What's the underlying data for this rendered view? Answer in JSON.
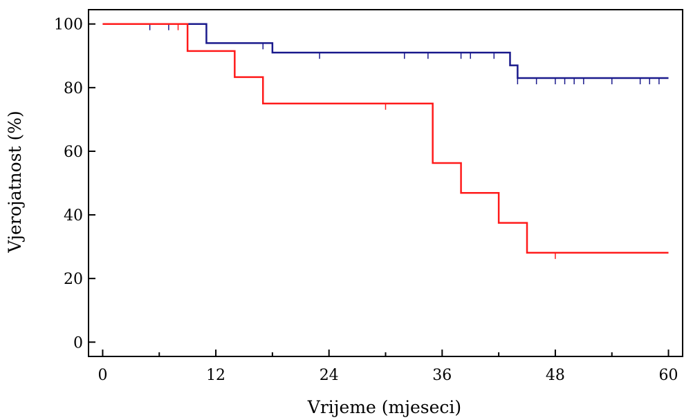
{
  "chart_data": {
    "type": "line",
    "step": true,
    "xlabel": "Vrijeme (mjeseci)",
    "ylabel": "Vjerojatnost (%)",
    "xlim": [
      -1.5,
      61.5
    ],
    "ylim": [
      -4.5,
      104.5
    ],
    "xticks": [
      0,
      12,
      24,
      36,
      48,
      60
    ],
    "xtick_labels": [
      "0",
      "12",
      "24",
      "36",
      "48",
      "60"
    ],
    "xminor": [
      6,
      18,
      30,
      42,
      54
    ],
    "yticks": [
      0,
      20,
      40,
      60,
      80,
      100
    ],
    "ytick_labels": [
      "0",
      "20",
      "40",
      "60",
      "80",
      "100"
    ],
    "grid": false,
    "series": [
      {
        "color": "#1a1a8c",
        "steps": [
          [
            0,
            100
          ],
          [
            11,
            94
          ],
          [
            18,
            91
          ],
          [
            43.2,
            87
          ],
          [
            44,
            83
          ],
          [
            60,
            83
          ]
        ],
        "censored": [
          [
            5,
            100
          ],
          [
            7,
            100
          ],
          [
            17,
            94
          ],
          [
            23,
            91
          ],
          [
            32,
            91
          ],
          [
            34.5,
            91
          ],
          [
            38,
            91
          ],
          [
            39,
            91
          ],
          [
            41.5,
            91
          ],
          [
            44,
            83
          ],
          [
            46,
            83
          ],
          [
            48,
            83
          ],
          [
            49,
            83
          ],
          [
            50,
            83
          ],
          [
            51,
            83
          ],
          [
            54,
            83
          ],
          [
            57,
            83
          ],
          [
            58,
            83
          ],
          [
            59,
            83
          ]
        ]
      },
      {
        "color": "#ff1a1a",
        "steps": [
          [
            0,
            100
          ],
          [
            9,
            91.5
          ],
          [
            14,
            83.3
          ],
          [
            17,
            75
          ],
          [
            35,
            56.3
          ],
          [
            38,
            46.9
          ],
          [
            42,
            37.5
          ],
          [
            45,
            28.1
          ],
          [
            60,
            28.1
          ]
        ],
        "censored": [
          [
            8,
            100
          ],
          [
            30,
            75
          ],
          [
            48,
            28.1
          ]
        ]
      }
    ]
  }
}
